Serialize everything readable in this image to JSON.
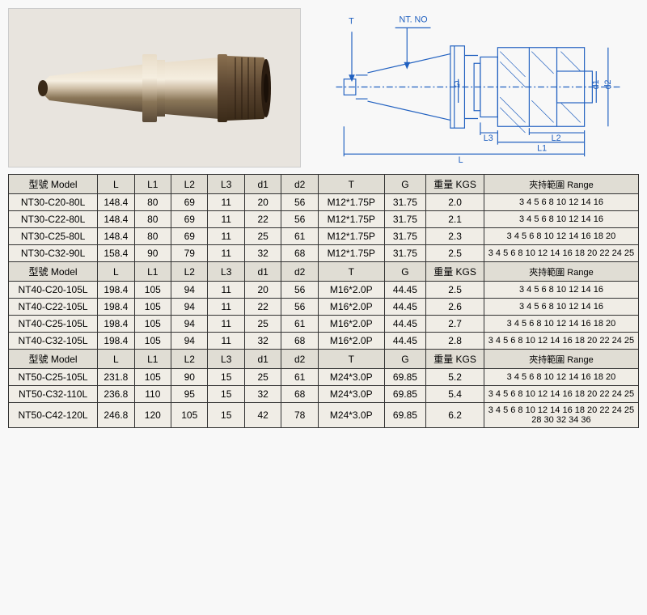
{
  "diagram_labels": {
    "t": "T",
    "nt_no": "NT. NO",
    "g": "G",
    "l": "L",
    "l1": "L1",
    "l2": "L2",
    "l3": "L3",
    "d1": "d1",
    "d2": "d2"
  },
  "headers": {
    "model": "型號 Model",
    "l": "L",
    "l1": "L1",
    "l2": "L2",
    "l3": "L3",
    "d1": "d1",
    "d2": "d2",
    "t": "T",
    "g": "G",
    "kgs": "重量 KGS",
    "range": "夾持範圍 Range"
  },
  "sections": [
    {
      "rows": [
        {
          "model": "NT30-C20-80L",
          "l": "148.4",
          "l1": "80",
          "l2": "69",
          "l3": "11",
          "d1": "20",
          "d2": "56",
          "t": "M12*1.75P",
          "g": "31.75",
          "kgs": "2.0",
          "range": "3 4 5 6 8 10 12 14 16"
        },
        {
          "model": "NT30-C22-80L",
          "l": "148.4",
          "l1": "80",
          "l2": "69",
          "l3": "11",
          "d1": "22",
          "d2": "56",
          "t": "M12*1.75P",
          "g": "31.75",
          "kgs": "2.1",
          "range": "3 4 5 6 8 10 12 14 16"
        },
        {
          "model": "NT30-C25-80L",
          "l": "148.4",
          "l1": "80",
          "l2": "69",
          "l3": "11",
          "d1": "25",
          "d2": "61",
          "t": "M12*1.75P",
          "g": "31.75",
          "kgs": "2.3",
          "range": "3 4 5 6 8 10 12 14 16 18 20"
        },
        {
          "model": "NT30-C32-90L",
          "l": "158.4",
          "l1": "90",
          "l2": "79",
          "l3": "11",
          "d1": "32",
          "d2": "68",
          "t": "M12*1.75P",
          "g": "31.75",
          "kgs": "2.5",
          "range": "3 4 5 6 8 10 12 14 16 18 20 22 24 25"
        }
      ]
    },
    {
      "rows": [
        {
          "model": "NT40-C20-105L",
          "l": "198.4",
          "l1": "105",
          "l2": "94",
          "l3": "11",
          "d1": "20",
          "d2": "56",
          "t": "M16*2.0P",
          "g": "44.45",
          "kgs": "2.5",
          "range": "3 4 5 6 8 10 12 14 16"
        },
        {
          "model": "NT40-C22-105L",
          "l": "198.4",
          "l1": "105",
          "l2": "94",
          "l3": "11",
          "d1": "22",
          "d2": "56",
          "t": "M16*2.0P",
          "g": "44.45",
          "kgs": "2.6",
          "range": "3 4 5 6 8 10 12 14 16"
        },
        {
          "model": "NT40-C25-105L",
          "l": "198.4",
          "l1": "105",
          "l2": "94",
          "l3": "11",
          "d1": "25",
          "d2": "61",
          "t": "M16*2.0P",
          "g": "44.45",
          "kgs": "2.7",
          "range": "3 4 5 6 8 10 12 14 16 18 20"
        },
        {
          "model": "NT40-C32-105L",
          "l": "198.4",
          "l1": "105",
          "l2": "94",
          "l3": "11",
          "d1": "32",
          "d2": "68",
          "t": "M16*2.0P",
          "g": "44.45",
          "kgs": "2.8",
          "range": "3 4 5 6 8 10 12 14 16 18 20 22 24 25"
        }
      ]
    },
    {
      "rows": [
        {
          "model": "NT50-C25-105L",
          "l": "231.8",
          "l1": "105",
          "l2": "90",
          "l3": "15",
          "d1": "25",
          "d2": "61",
          "t": "M24*3.0P",
          "g": "69.85",
          "kgs": "5.2",
          "range": "3 4 5 6 8 10 12 14 16 18 20"
        },
        {
          "model": "NT50-C32-110L",
          "l": "236.8",
          "l1": "110",
          "l2": "95",
          "l3": "15",
          "d1": "32",
          "d2": "68",
          "t": "M24*3.0P",
          "g": "69.85",
          "kgs": "5.4",
          "range": "3 4 5 6 8 10 12 14 16 18 20 22 24 25"
        },
        {
          "model": "NT50-C42-120L",
          "l": "246.8",
          "l1": "120",
          "l2": "105",
          "l3": "15",
          "d1": "42",
          "d2": "78",
          "t": "M24*3.0P",
          "g": "69.85",
          "kgs": "6.2",
          "range": "3 4 5 6 8 10 12 14 16 18 20 22 24 25 28 30 32 34 36"
        }
      ]
    }
  ],
  "diagram_style": {
    "line_color": "#2060c0",
    "fill_color": "#ffffff",
    "hatch_color": "#2060c0"
  }
}
